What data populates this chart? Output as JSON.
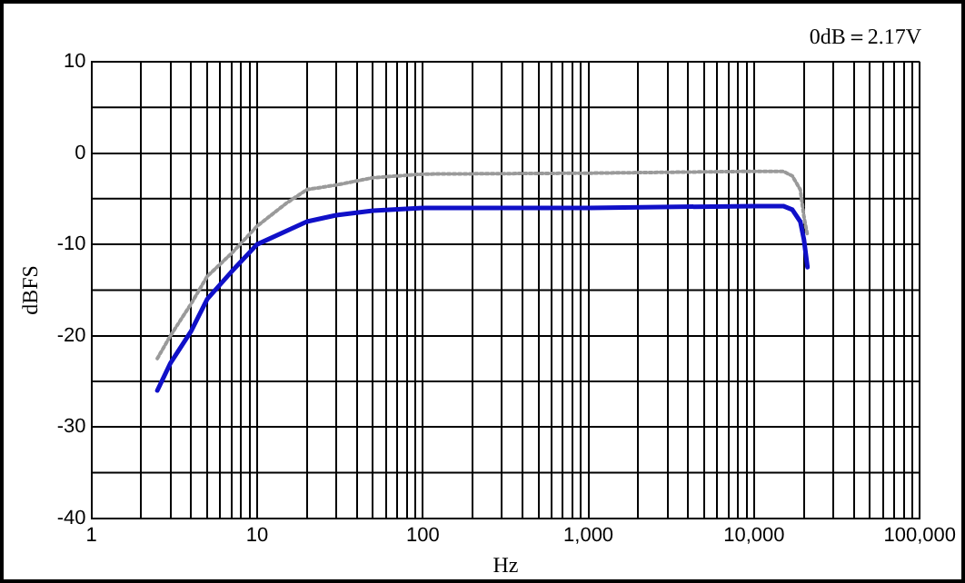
{
  "chart_data": {
    "type": "line",
    "xlabel": "Hz",
    "ylabel": "dBFS",
    "annotations": [
      "0dB＝2.17V"
    ],
    "log": "x",
    "grid": true,
    "legend": false,
    "marker": "none",
    "xlim": [
      1,
      100000
    ],
    "ylim": [
      -40,
      10
    ],
    "yticks": [
      -40,
      -30,
      -20,
      -10,
      0,
      10
    ],
    "xticks": [
      {
        "value": 1,
        "label": "1"
      },
      {
        "value": 2,
        "label": null
      },
      {
        "value": 3,
        "label": null
      },
      {
        "value": 4,
        "label": null
      },
      {
        "value": 5,
        "label": null
      },
      {
        "value": 6,
        "label": null
      },
      {
        "value": 7,
        "label": null
      },
      {
        "value": 8,
        "label": null
      },
      {
        "value": 9,
        "label": null
      },
      {
        "value": 10,
        "label": "10"
      },
      {
        "value": 20,
        "label": null
      },
      {
        "value": 30,
        "label": null
      },
      {
        "value": 40,
        "label": null
      },
      {
        "value": 50,
        "label": null
      },
      {
        "value": 60,
        "label": null
      },
      {
        "value": 70,
        "label": null
      },
      {
        "value": 80,
        "label": null
      },
      {
        "value": 90,
        "label": null
      },
      {
        "value": 100,
        "label": "100"
      },
      {
        "value": 200,
        "label": null
      },
      {
        "value": 300,
        "label": null
      },
      {
        "value": 400,
        "label": null
      },
      {
        "value": 500,
        "label": null
      },
      {
        "value": 600,
        "label": null
      },
      {
        "value": 700,
        "label": null
      },
      {
        "value": 800,
        "label": null
      },
      {
        "value": 900,
        "label": null
      },
      {
        "value": 1000,
        "label": "1,000"
      },
      {
        "value": 2000,
        "label": null
      },
      {
        "value": 3000,
        "label": null
      },
      {
        "value": 4000,
        "label": null
      },
      {
        "value": 5000,
        "label": null
      },
      {
        "value": 6000,
        "label": null
      },
      {
        "value": 7000,
        "label": null
      },
      {
        "value": 8000,
        "label": null
      },
      {
        "value": 9000,
        "label": null
      },
      {
        "value": 10000,
        "label": "10,000"
      },
      {
        "value": 20000,
        "label": null
      },
      {
        "value": 30000,
        "label": null
      },
      {
        "value": 40000,
        "label": null
      },
      {
        "value": 50000,
        "label": null
      },
      {
        "value": 60000,
        "label": null
      },
      {
        "value": 70000,
        "label": null
      },
      {
        "value": 80000,
        "label": null
      },
      {
        "value": 90000,
        "label": null
      },
      {
        "value": 100000,
        "label": "100,000"
      }
    ],
    "series": [
      {
        "color": "#9a9a9a",
        "line_style": "dotted",
        "x": [
          2.5,
          3,
          4,
          5,
          7,
          10,
          15,
          20,
          30,
          50,
          100,
          1000,
          10000,
          15000,
          17000,
          19000,
          20000,
          21000
        ],
        "values": [
          -22.5,
          -20,
          -16.5,
          -13.5,
          -11,
          -8,
          -5.5,
          -4,
          -3.5,
          -2.7,
          -2.3,
          -2.2,
          -2,
          -2,
          -2.5,
          -4,
          -7,
          -9
        ]
      },
      {
        "color": "#1010c8",
        "line_style": "solid",
        "x": [
          2.5,
          3,
          4,
          5,
          7,
          10,
          20,
          30,
          50,
          100,
          1000,
          10000,
          15000,
          17000,
          19000,
          20000,
          21000
        ],
        "values": [
          -26,
          -23,
          -19.5,
          -16,
          -13,
          -10,
          -7.5,
          -6.8,
          -6.3,
          -6,
          -6,
          -5.8,
          -5.8,
          -6.2,
          -7.5,
          -9.5,
          -12.5
        ]
      }
    ]
  }
}
